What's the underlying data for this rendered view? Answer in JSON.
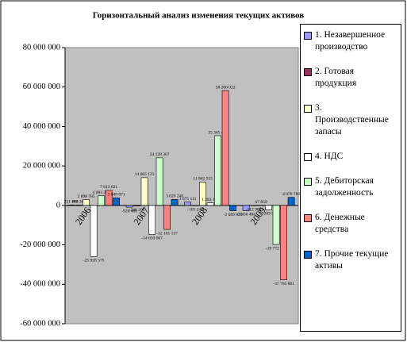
{
  "chart_data": {
    "type": "bar",
    "title": "Горизонтальный анализ изменения текущих активов",
    "categories": [
      "2006",
      "2007",
      "2008",
      "2009"
    ],
    "series": [
      {
        "name": "1. Незавершенное производство",
        "color": "#9999ff",
        "values": [
          231463,
          -926480,
          1675111,
          -2656484
        ],
        "value_labels": [
          "231 463",
          "-926 480",
          "1 675 111",
          "-2 656 484"
        ]
      },
      {
        "name": "2. Готовая продукция",
        "color": "#993366",
        "values": [
          186366,
          -286298,
          -101243,
          -112904
        ],
        "value_labels": [
          "186 366",
          "-286 298",
          "-101 243",
          "-112 904"
        ]
      },
      {
        "name": "3. Производственные запасы",
        "color": "#ffffcc",
        "values": [
          2898785,
          14065123,
          11842515,
          67859
        ],
        "value_labels": [
          "2 898 785",
          "14 065 123",
          "11 842 515",
          "67 859"
        ]
      },
      {
        "name": "4. НДС",
        "color": "#ffffff",
        "values": [
          -25928575,
          -14650067,
          1283128,
          -2209572
        ],
        "value_labels": [
          "-25 928 575",
          "-14 650 067",
          "1 283 128",
          "-2 209 572"
        ]
      },
      {
        "name": "5. Дебиторская задолженность",
        "color": "#ccffcc",
        "values": [
          4883227,
          24128307,
          35345497,
          -19772931
        ],
        "value_labels": [
          "4 883 227",
          "24 128 307",
          "35 345 497",
          "-19 772 931"
        ]
      },
      {
        "name": "6. Денежные средства",
        "color": "#ff8080",
        "values": [
          7613621,
          -12161137,
          58200022,
          -37705881
        ],
        "value_labels": [
          "7 613 621",
          "-12 161 137",
          "58 200 022",
          "-37 705 881"
        ]
      },
      {
        "name": "7. Прочие текущие активы",
        "color": "#0066cc",
        "values": [
          3849071,
          3020248,
          -2689970,
          4078786
        ],
        "value_labels": [
          "3 849 071",
          "3 020 248",
          "-2 689 970",
          "4 078 786"
        ]
      }
    ],
    "ylim": [
      -60000000,
      80000000
    ],
    "yticks": [
      {
        "value": -60000000,
        "label": "-60 000 000"
      },
      {
        "value": -40000000,
        "label": "-40 000 000"
      },
      {
        "value": -20000000,
        "label": "-20 000 000"
      },
      0,
      {
        "value": 20000000,
        "label": "20 000 000"
      },
      {
        "value": 40000000,
        "label": "40 000 000"
      },
      {
        "value": 60000000,
        "label": "60 000 000"
      },
      {
        "value": 80000000,
        "label": "80 000 000"
      }
    ],
    "legend": "right"
  }
}
